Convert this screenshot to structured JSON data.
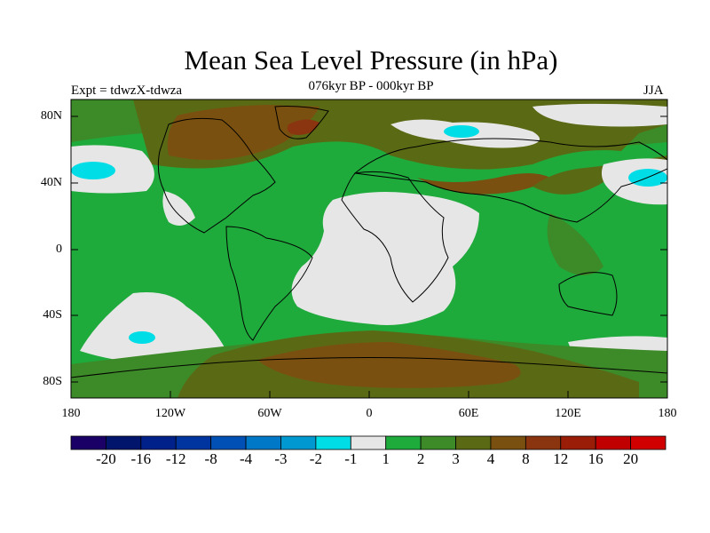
{
  "title": "Mean Sea Level Pressure (in hPa)",
  "subtitle": "076kyr BP - 000kyr BP",
  "experiment": "Expt = tdwzX-tdwza",
  "season": "JJA",
  "axes": {
    "y_ticks": [
      "80N",
      "40N",
      "0",
      "40S",
      "80S"
    ],
    "x_ticks": [
      "180",
      "120W",
      "60W",
      "0",
      "60E",
      "120E",
      "180"
    ]
  },
  "colorbar": {
    "labels": [
      "-20",
      "-16",
      "-12",
      "-8",
      "-4",
      "-3",
      "-2",
      "-1",
      "1",
      "2",
      "3",
      "4",
      "8",
      "12",
      "16",
      "20"
    ],
    "colors": [
      "#1a0066",
      "#00156b",
      "#00208a",
      "#0035a0",
      "#0050b5",
      "#0078c8",
      "#0098d0",
      "#00dde6",
      "#e6e6e6",
      "#1faa3c",
      "#3d8a28",
      "#5a6a14",
      "#7a5010",
      "#8a3510",
      "#9a1d08",
      "#c00000",
      "#d00000"
    ]
  },
  "colors": {
    "light": "#e6e6e6",
    "cyan": "#00dde6",
    "green": "#1faa3c",
    "dark_green": "#3d8a28",
    "olive": "#5a6a14",
    "brown": "#7a5010",
    "red_brown": "#8a3510"
  }
}
